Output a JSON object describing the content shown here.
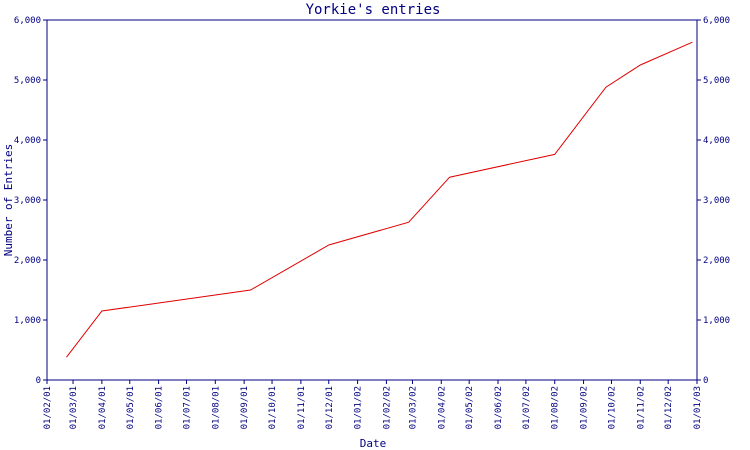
{
  "chart_data": {
    "type": "line",
    "title": "Yorkie's entries",
    "xlabel": "Date",
    "ylabel": "Number of Entries",
    "ylim": [
      0,
      6000
    ],
    "yticks": [
      0,
      1000,
      2000,
      3000,
      4000,
      5000,
      6000
    ],
    "ytick_labels": [
      "0",
      "1,000",
      "2,000",
      "3,000",
      "4,000",
      "5,000",
      "6,000"
    ],
    "xlim": [
      "2001-02-01",
      "2003-01-01"
    ],
    "xticks": [
      "2001-02-01",
      "2001-03-01",
      "2001-04-01",
      "2001-05-01",
      "2001-06-01",
      "2001-07-01",
      "2001-08-01",
      "2001-09-01",
      "2001-10-01",
      "2001-11-01",
      "2001-12-01",
      "2002-01-01",
      "2002-02-01",
      "2002-03-01",
      "2002-04-01",
      "2002-05-01",
      "2002-06-01",
      "2002-07-01",
      "2002-08-01",
      "2002-09-01",
      "2002-10-01",
      "2002-11-01",
      "2002-12-01",
      "2003-01-01"
    ],
    "xtick_labels": [
      "01/02/01",
      "01/03/01",
      "01/04/01",
      "01/05/01",
      "01/06/01",
      "01/07/01",
      "01/08/01",
      "01/09/01",
      "01/10/01",
      "01/11/01",
      "01/12/01",
      "01/01/02",
      "01/02/02",
      "01/03/02",
      "01/04/02",
      "01/05/02",
      "01/06/02",
      "01/07/02",
      "01/08/02",
      "01/09/02",
      "01/10/02",
      "01/11/02",
      "01/12/02",
      "01/01/03"
    ],
    "grid": false,
    "series": [
      {
        "color": "#e00000",
        "x": [
          "2001-02-22",
          "2001-04-01",
          "2001-09-08",
          "2001-12-01",
          "2002-02-25",
          "2002-04-10",
          "2002-08-01",
          "2002-09-25",
          "2002-11-01",
          "2002-12-27"
        ],
        "y": [
          380,
          1150,
          1500,
          2250,
          2630,
          3380,
          3760,
          4880,
          5250,
          5630
        ]
      }
    ]
  }
}
